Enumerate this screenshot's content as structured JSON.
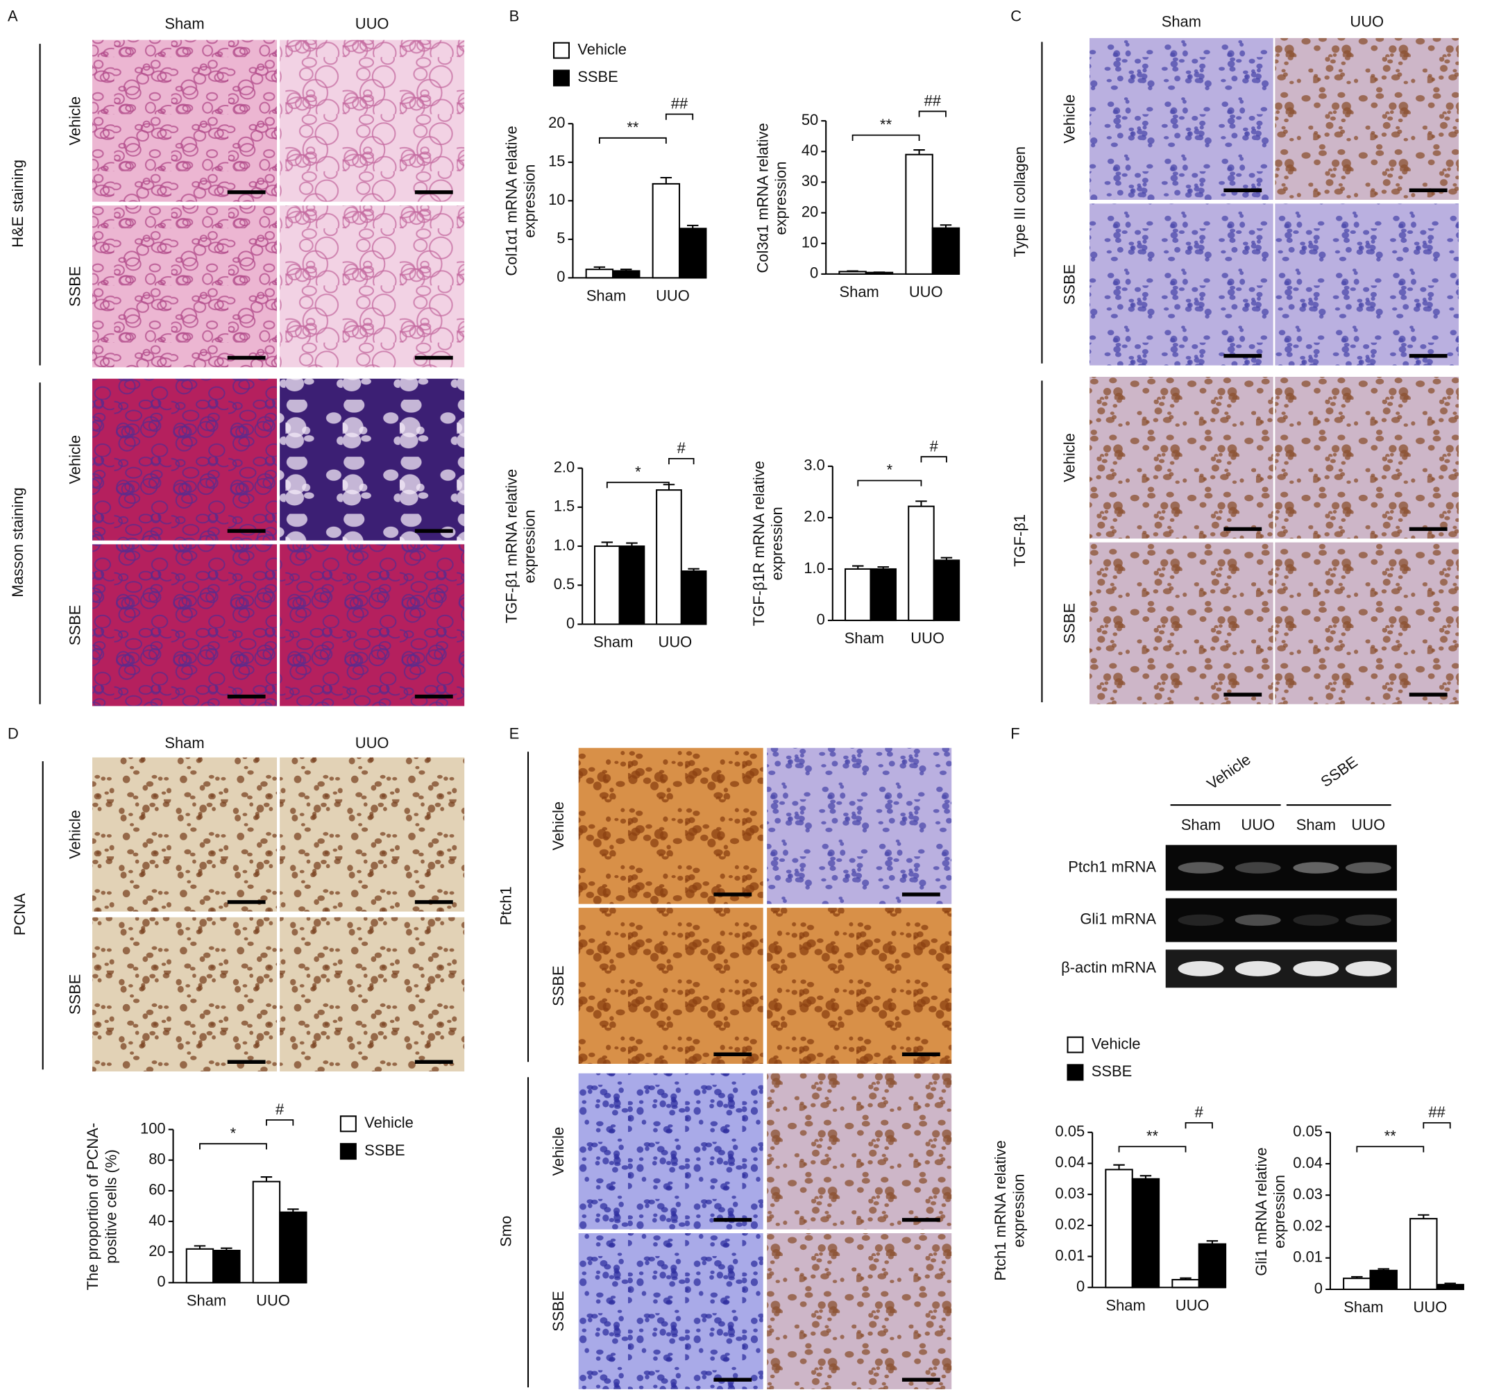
{
  "panels": {
    "A": {
      "label": "A",
      "columns": [
        "Sham",
        "UUO"
      ],
      "groups": [
        {
          "label": "H&E staining",
          "rows": [
            "Vehicle",
            "SSBE"
          ]
        },
        {
          "label": "Masson staining",
          "rows": [
            "Vehicle",
            "SSBE"
          ]
        }
      ]
    },
    "B": {
      "label": "B"
    },
    "C": {
      "label": "C",
      "columns": [
        "Sham",
        "UUO"
      ],
      "groups": [
        {
          "label": "Type III collagen",
          "rows": [
            "Vehicle",
            "SSBE"
          ]
        },
        {
          "label": "TGF-β1",
          "rows": [
            "Vehicle",
            "SSBE"
          ]
        }
      ]
    },
    "D": {
      "label": "D",
      "columns": [
        "Sham",
        "UUO"
      ],
      "groups": [
        {
          "label": "PCNA",
          "rows": [
            "Vehicle",
            "SSBE"
          ]
        }
      ]
    },
    "E": {
      "label": "E",
      "groups": [
        {
          "label": "Ptch1",
          "rows": [
            "Vehicle",
            "SSBE"
          ]
        },
        {
          "label": "Smo",
          "rows": [
            "Vehicle",
            "SSBE"
          ]
        }
      ]
    },
    "F": {
      "label": "F",
      "gel": {
        "groups": [
          "Vehicle",
          "SSBE"
        ],
        "lanes": [
          "Sham",
          "UUO",
          "Sham",
          "UUO"
        ],
        "bands": [
          "Ptch1 mRNA",
          "Gli1 mRNA",
          "β-actin mRNA"
        ]
      }
    }
  },
  "chart_data": [
    {
      "type": "bar",
      "ylabel": "Col1α1 mRNA relative expression",
      "categories": [
        "Sham",
        "UUO"
      ],
      "legend": true,
      "series": [
        {
          "name": "Vehicle",
          "color": "#ffffff",
          "values": [
            1.1,
            12.2
          ],
          "errors": [
            0.3,
            0.8
          ]
        },
        {
          "name": "SSBE",
          "color": "#000000",
          "values": [
            0.9,
            6.4
          ],
          "errors": [
            0.2,
            0.4
          ]
        }
      ],
      "ylim": [
        0,
        20
      ],
      "yticks": [
        0,
        5,
        10,
        15,
        20
      ],
      "annotations": [
        "**",
        "##"
      ]
    },
    {
      "type": "bar",
      "ylabel": "Col3α1 mRNA relative expression",
      "categories": [
        "Sham",
        "UUO"
      ],
      "series": [
        {
          "color": "#ffffff",
          "values": [
            0.8,
            39
          ],
          "errors": [
            0.2,
            1.5
          ]
        },
        {
          "color": "#000000",
          "values": [
            0.5,
            15
          ],
          "errors": [
            0.1,
            1
          ]
        }
      ],
      "ylim": [
        0,
        50
      ],
      "yticks": [
        0,
        10,
        20,
        30,
        40,
        50
      ],
      "annotations": [
        "**",
        "##"
      ]
    },
    {
      "type": "bar",
      "ylabel": "TGF-β1 mRNA relative expression",
      "categories": [
        "Sham",
        "UUO"
      ],
      "series": [
        {
          "color": "#ffffff",
          "values": [
            1.0,
            1.72
          ],
          "errors": [
            0.05,
            0.07
          ]
        },
        {
          "color": "#000000",
          "values": [
            1.0,
            0.68
          ],
          "errors": [
            0.04,
            0.03
          ]
        }
      ],
      "ylim": [
        0,
        2
      ],
      "yticks": [
        0,
        0.5,
        {
          "value": 1,
          "label": "1.0"
        },
        1.5,
        {
          "value": 2,
          "label": "2.0"
        }
      ],
      "annotations": [
        "*",
        "#"
      ]
    },
    {
      "type": "bar",
      "ylabel": "TGF-β1R mRNA relative expression",
      "categories": [
        "Sham",
        "UUO"
      ],
      "series": [
        {
          "color": "#ffffff",
          "values": [
            1.0,
            2.22
          ],
          "errors": [
            0.06,
            0.1
          ]
        },
        {
          "color": "#000000",
          "values": [
            1.0,
            1.17
          ],
          "errors": [
            0.04,
            0.05
          ]
        }
      ],
      "ylim": [
        0,
        3
      ],
      "yticks": [
        0,
        {
          "value": 1,
          "label": "1.0"
        },
        {
          "value": 2,
          "label": "2.0"
        },
        {
          "value": 3,
          "label": "3.0"
        }
      ],
      "annotations": [
        "*",
        "#"
      ]
    },
    {
      "type": "bar",
      "ylabel": "The proportion of PCNA-positive cells (%)",
      "categories": [
        "Sham",
        "UUO"
      ],
      "legend": true,
      "series": [
        {
          "name": "Vehicle",
          "color": "#ffffff",
          "values": [
            22,
            66
          ],
          "errors": [
            2,
            3
          ]
        },
        {
          "name": "SSBE",
          "color": "#000000",
          "values": [
            21,
            46
          ],
          "errors": [
            1.5,
            2
          ]
        }
      ],
      "ylim": [
        0,
        100
      ],
      "yticks": [
        0,
        20,
        40,
        60,
        80,
        100
      ],
      "annotations": [
        "*",
        "#"
      ]
    },
    {
      "type": "bar",
      "ylabel": "Ptch1 mRNA relative expression",
      "categories": [
        "Sham",
        "UUO"
      ],
      "legend": true,
      "series": [
        {
          "name": "Vehicle",
          "color": "#ffffff",
          "values": [
            0.038,
            0.0025
          ],
          "errors": [
            0.0015,
            0.0005
          ]
        },
        {
          "name": "SSBE",
          "color": "#000000",
          "values": [
            0.035,
            0.014
          ],
          "errors": [
            0.001,
            0.001
          ]
        }
      ],
      "ylim": [
        0,
        0.05
      ],
      "yticks": [
        0,
        0.01,
        0.02,
        0.03,
        0.04,
        0.05
      ],
      "annotations": [
        "**",
        "#"
      ]
    },
    {
      "type": "bar",
      "ylabel": "Gli1 mRNA relative expression",
      "categories": [
        "Sham",
        "UUO"
      ],
      "series": [
        {
          "color": "#ffffff",
          "values": [
            0.0035,
            0.0225
          ],
          "errors": [
            0.0005,
            0.0012
          ]
        },
        {
          "color": "#000000",
          "values": [
            0.006,
            0.0015
          ],
          "errors": [
            0.0005,
            0.0004
          ]
        }
      ],
      "ylim": [
        0,
        0.05
      ],
      "yticks": [
        0,
        0.01,
        0.02,
        0.03,
        0.04,
        0.05
      ],
      "annotations": [
        "**",
        "##"
      ]
    }
  ]
}
